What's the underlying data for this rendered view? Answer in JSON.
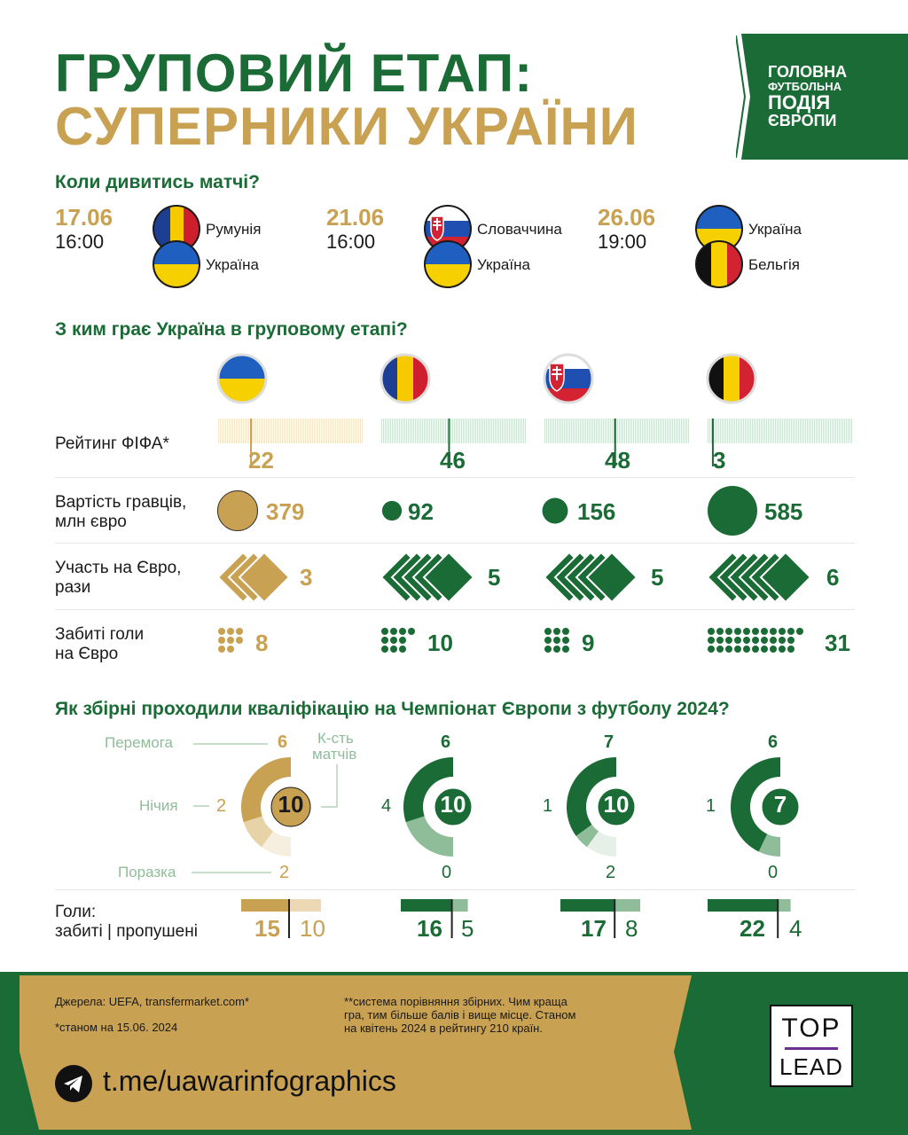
{
  "title": {
    "line1": "ГРУПОВИЙ ЕТАП:",
    "line2": "СУПЕРНИКИ УКРАЇНИ"
  },
  "badge": {
    "lines": [
      "ГОЛОВНА",
      "ФУТБОЛЬНА",
      "ПОДІЯ",
      "ЄВРОПИ"
    ]
  },
  "schedule": {
    "title": "Коли дивитись матчі?",
    "matches": [
      {
        "date": "17.06",
        "time": "16:00",
        "team1": "Румунія",
        "team2": "Україна"
      },
      {
        "date": "21.06",
        "time": "16:00",
        "team1": "Словаччина",
        "team2": "Україна"
      },
      {
        "date": "26.06",
        "time": "19:00",
        "team1": "Україна",
        "team2": "Бельгія"
      }
    ]
  },
  "comparison": {
    "title": "З ким грає Україна в груповому етапі?",
    "rows": {
      "fifa": "Рейтинг ФІФА*",
      "value_1": "Вартість гравців,",
      "value_2": "млн євро",
      "euro_1": "Участь на Євро,",
      "euro_2": "рази",
      "goals_1": "Забиті голи",
      "goals_2": "на Євро"
    },
    "teams": [
      {
        "flag": "ukraine-flag",
        "fifa": "22",
        "value": "379",
        "euro": "3",
        "goals": "8"
      },
      {
        "flag": "romania-flag",
        "fifa": "46",
        "value": "92",
        "euro": "5",
        "goals": "10"
      },
      {
        "flag": "slovakia-flag",
        "fifa": "48",
        "value": "156",
        "euro": "5",
        "goals": "9"
      },
      {
        "flag": "belgium-flag",
        "fifa": "3",
        "value": "585",
        "euro": "6",
        "goals": "31"
      }
    ]
  },
  "qualification": {
    "title": "Як збірні проходили кваліфікацію на Чемпіонат Європи з футболу 2024?",
    "labels": {
      "win": "Перемога",
      "draw": "Нічия",
      "loss": "Поразка",
      "matches_1": "К-сть",
      "matches_2": "матчів"
    },
    "goals_label_1": "Голи:",
    "goals_label_2": "забиті | пропушені",
    "teams": [
      {
        "wins": "6",
        "draws": "2",
        "losses": "2",
        "matches": "10",
        "scored": "15",
        "conceded": "10"
      },
      {
        "wins": "6",
        "draws": "4",
        "losses": "0",
        "matches": "10",
        "scored": "16",
        "conceded": "5"
      },
      {
        "wins": "7",
        "draws": "1",
        "losses": "2",
        "matches": "10",
        "scored": "17",
        "conceded": "8"
      },
      {
        "wins": "6",
        "draws": "1",
        "losses": "0",
        "matches": "7",
        "scored": "22",
        "conceded": "4"
      }
    ]
  },
  "footer": {
    "sources": "Джерела: UEFA, transfermarket.com*",
    "asof": "*станом на 15.06. 2024",
    "note_1": "**система порівняння збірних. Чим краща",
    "note_2": "гра, тим більше балів і вище місце. Станом",
    "note_3": "на квітень 2024 в рейтингу 210 країн.",
    "link": "t.me/uawarinfographics",
    "logo_top": "TOP",
    "logo_bottom": "LEAD"
  },
  "colors": {
    "green": "#1a6b35",
    "gold": "#c9a152",
    "light_green": "#8fbd99"
  }
}
